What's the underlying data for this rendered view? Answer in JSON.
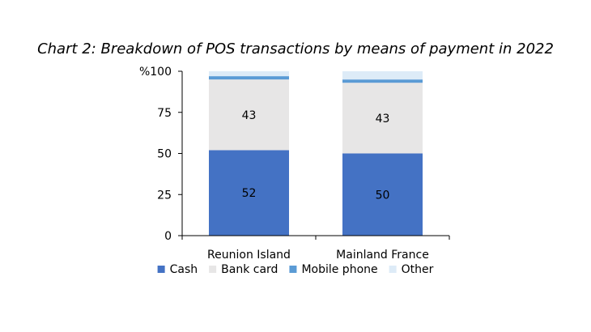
{
  "chart_data": {
    "type": "bar",
    "stacked": true,
    "title": "Chart 2: Breakdown of POS transactions by means of payment in 2022",
    "categories": [
      "Reunion Island",
      "Mainland France"
    ],
    "series": [
      {
        "name": "Cash",
        "values": [
          52,
          50
        ],
        "labels": [
          "52",
          "50"
        ],
        "color": "#4472C4"
      },
      {
        "name": "Bank card",
        "values": [
          43,
          43
        ],
        "labels": [
          "43",
          "43"
        ],
        "color": "#E7E6E6"
      },
      {
        "name": "Mobile phone",
        "values": [
          2,
          2
        ],
        "labels": [
          "",
          ""
        ],
        "color": "#5B9BD5"
      },
      {
        "name": "Other",
        "values": [
          3,
          5
        ],
        "labels": [
          "",
          ""
        ],
        "color": "#DDEBF7"
      }
    ],
    "yticks": [
      "0",
      "25",
      "50",
      "75",
      "%100"
    ],
    "ylim": [
      0,
      100
    ],
    "grid": false,
    "legend": "bottom"
  }
}
